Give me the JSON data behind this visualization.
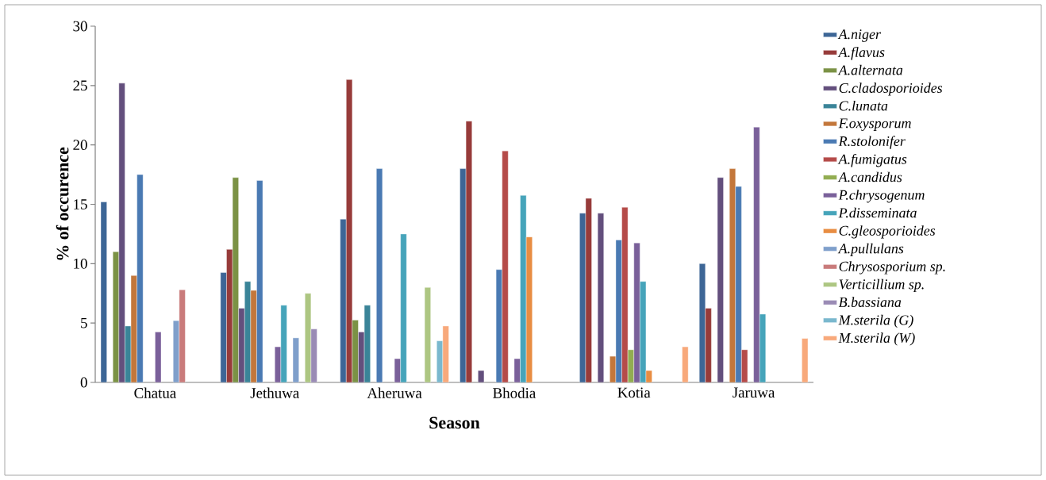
{
  "chart_data": {
    "type": "bar",
    "xlabel": "Season",
    "ylabel": "% of occurence",
    "categories": [
      "Chatua",
      "Jethuwa",
      "Aheruwa",
      "Bhodia",
      "Kotia",
      "Jaruwa"
    ],
    "ylim": [
      0,
      30
    ],
    "yticks": [
      0,
      5,
      10,
      15,
      20,
      25,
      30
    ],
    "legend": "right",
    "series": [
      {
        "name": "A.niger",
        "color": "#3d6696",
        "values": [
          15.2,
          9.25,
          13.75,
          18,
          14.25,
          10
        ]
      },
      {
        "name": "A.flavus",
        "color": "#973b3a",
        "values": [
          null,
          11.2,
          25.5,
          22,
          15.5,
          6.25
        ]
      },
      {
        "name": "A.alternata",
        "color": "#7b9245",
        "values": [
          11,
          17.25,
          5.25,
          null,
          null,
          null
        ]
      },
      {
        "name": "C.cladosporioides",
        "color": "#634f7d",
        "values": [
          25.2,
          6.25,
          4.25,
          1,
          14.25,
          17.25
        ]
      },
      {
        "name": "C.lunata",
        "color": "#3a8498",
        "values": [
          4.75,
          8.5,
          6.5,
          null,
          null,
          null
        ]
      },
      {
        "name": "F.oxysporum",
        "color": "#c3773b",
        "values": [
          9,
          7.75,
          null,
          null,
          2.2,
          18
        ]
      },
      {
        "name": "R.stolonifer",
        "color": "#4a7ab3",
        "values": [
          17.5,
          17,
          18,
          9.5,
          12,
          16.5
        ]
      },
      {
        "name": "A.fumigatus",
        "color": "#b54b49",
        "values": [
          null,
          null,
          null,
          19.5,
          14.75,
          2.75
        ]
      },
      {
        "name": "A.candidus",
        "color": "#92ad51",
        "values": [
          null,
          null,
          null,
          null,
          2.75,
          null
        ]
      },
      {
        "name": "P.chrysogenum",
        "color": "#7a609a",
        "values": [
          4.25,
          3,
          2,
          2,
          11.75,
          21.5
        ]
      },
      {
        "name": "P.disseminata",
        "color": "#46a4ba",
        "values": [
          null,
          6.5,
          12.5,
          15.75,
          8.5,
          5.75
        ]
      },
      {
        "name": "C.gleosporioides",
        "color": "#e88d42",
        "values": [
          null,
          null,
          null,
          12.25,
          1,
          null
        ]
      },
      {
        "name": "A.pullulans",
        "color": "#7f9fcb",
        "values": [
          5.2,
          3.75,
          null,
          null,
          null,
          null
        ]
      },
      {
        "name": "Chrysosporium sp.",
        "color": "#c97b7b",
        "values": [
          7.8,
          null,
          null,
          null,
          null,
          null
        ]
      },
      {
        "name": "Verticillium sp.",
        "color": "#adc682",
        "values": [
          null,
          7.5,
          8,
          null,
          null,
          null
        ]
      },
      {
        "name": "B.bassiana",
        "color": "#9a8bb5",
        "values": [
          null,
          4.5,
          null,
          null,
          null,
          null
        ]
      },
      {
        "name": "M.sterila (G)",
        "color": "#7ab8ce",
        "values": [
          null,
          null,
          3.5,
          null,
          null,
          null
        ]
      },
      {
        "name": "M.sterila (W)",
        "color": "#f8a97b",
        "values": [
          null,
          null,
          4.75,
          null,
          3,
          3.7
        ]
      }
    ]
  }
}
